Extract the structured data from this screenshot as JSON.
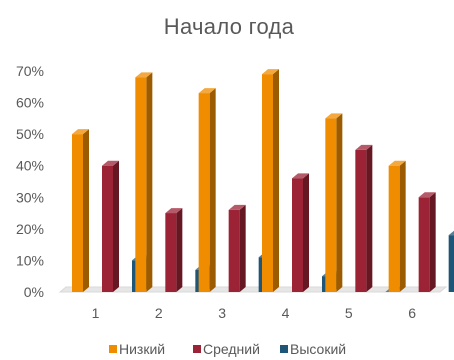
{
  "chart_data": {
    "type": "bar",
    "title": "Начало года",
    "xlabel": "",
    "ylabel": "",
    "categories": [
      "1",
      "2",
      "3",
      "4",
      "5",
      "6"
    ],
    "ylim": [
      0,
      70
    ],
    "yticks": [
      "0%",
      "10%",
      "20%",
      "30%",
      "40%",
      "50%",
      "60%",
      "70%"
    ],
    "grid": false,
    "legend_position": "bottom",
    "bar_style": "3d-columns",
    "series": [
      {
        "name": "Низкий",
        "color": "#F08C00",
        "values": [
          50,
          68,
          63,
          69,
          55,
          40
        ]
      },
      {
        "name": "Средний",
        "color": "#9B2335",
        "values": [
          40,
          25,
          26,
          36,
          45,
          30
        ]
      },
      {
        "name": "Высокий",
        "color": "#1F5677",
        "values": [
          10,
          7,
          11,
          5,
          0,
          18
        ]
      }
    ]
  }
}
